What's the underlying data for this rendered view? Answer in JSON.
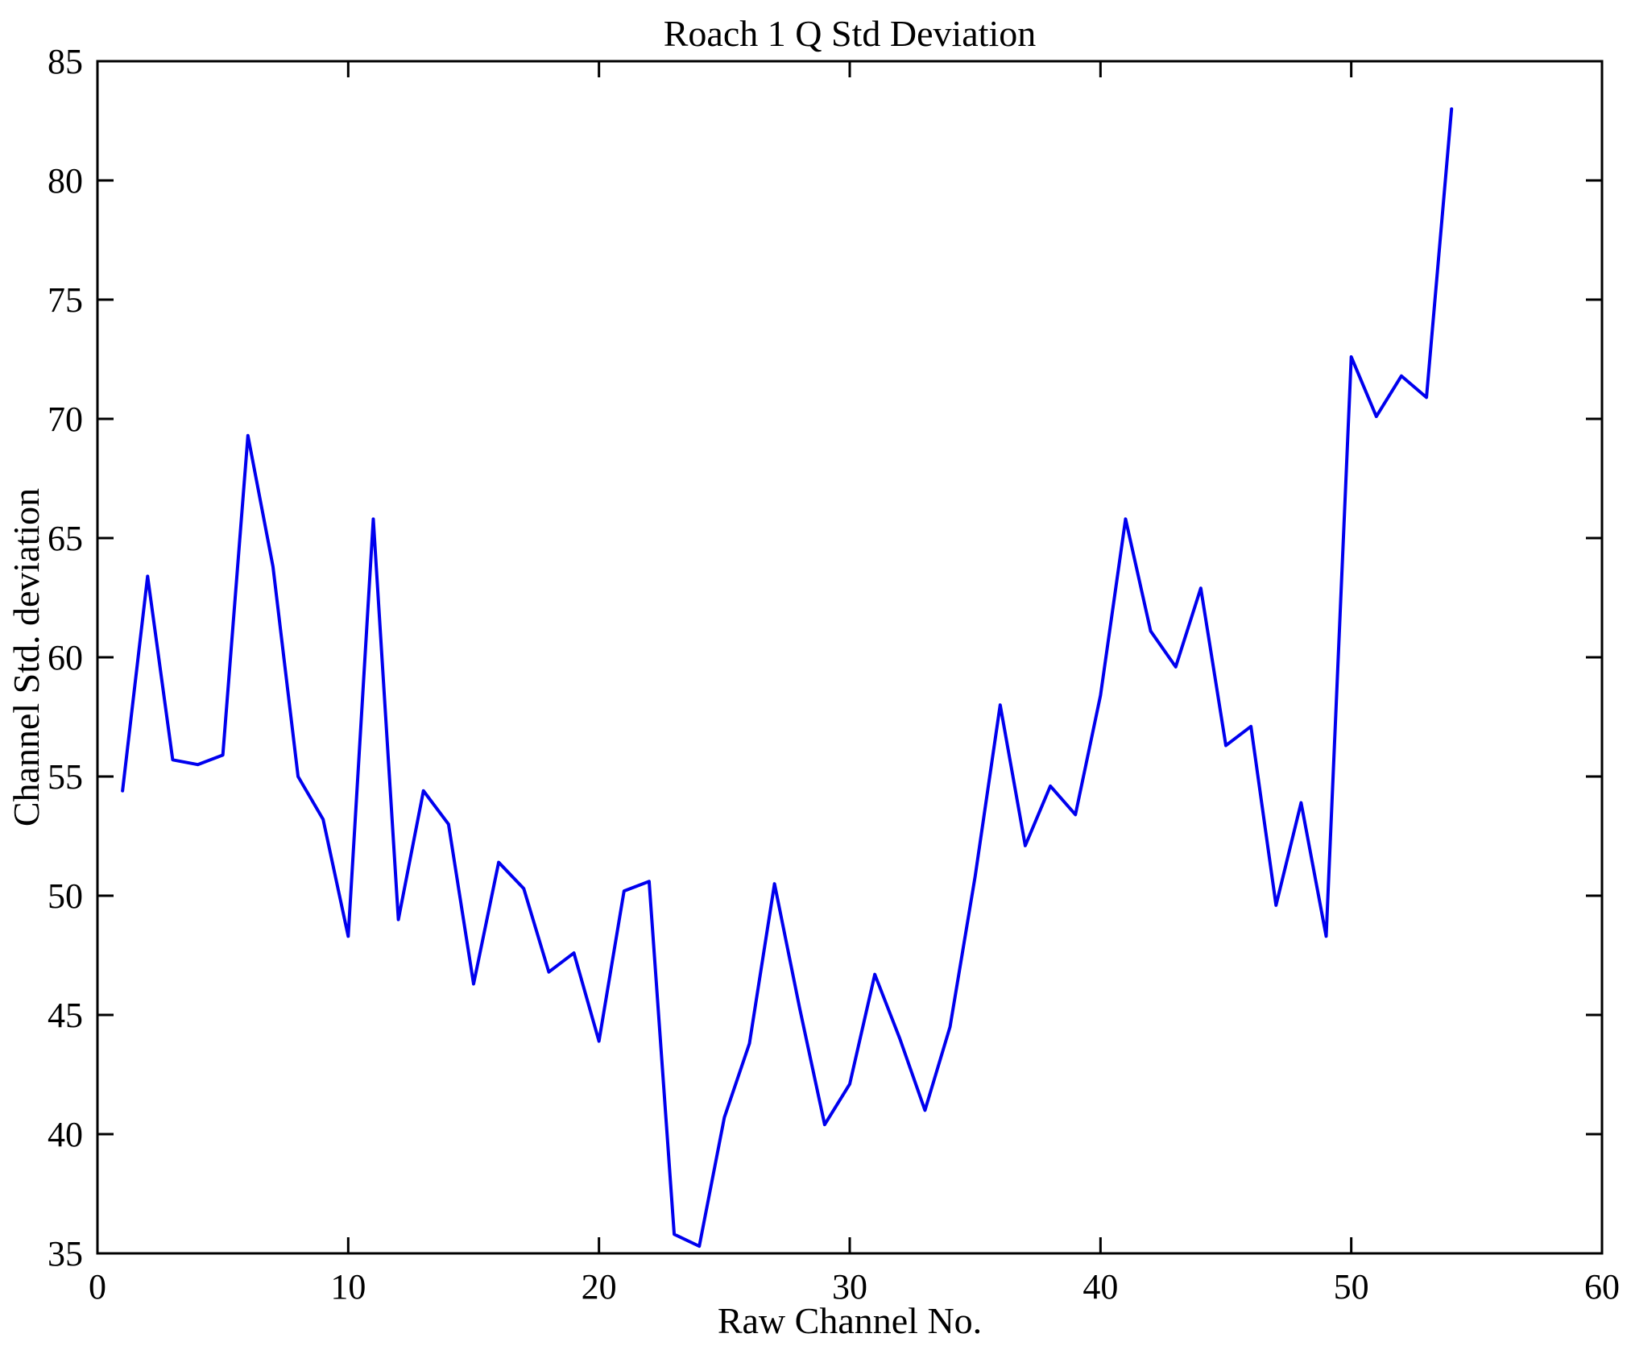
{
  "figure": {
    "background": "#ffffff"
  },
  "chart_data": {
    "type": "line",
    "title": "Roach 1 Q Std Deviation",
    "xlabel": "Raw Channel No.",
    "ylabel": "Channel Std. deviation",
    "x": [
      1,
      2,
      3,
      4,
      5,
      6,
      7,
      8,
      9,
      10,
      11,
      12,
      13,
      14,
      15,
      16,
      17,
      18,
      19,
      20,
      21,
      22,
      23,
      24,
      25,
      26,
      27,
      28,
      29,
      30,
      31,
      32,
      33,
      34,
      35,
      36,
      37,
      38,
      39,
      40,
      41,
      42,
      43,
      44,
      45,
      46,
      47,
      48,
      49,
      50,
      51,
      52,
      53,
      54
    ],
    "values": [
      54.4,
      63.4,
      55.7,
      55.5,
      55.9,
      69.3,
      63.8,
      55.0,
      53.2,
      48.3,
      65.8,
      49.0,
      54.4,
      53.0,
      46.3,
      51.4,
      50.3,
      46.8,
      47.6,
      43.9,
      50.2,
      50.6,
      35.8,
      35.3,
      40.7,
      43.8,
      50.5,
      45.3,
      40.4,
      42.1,
      46.7,
      44.0,
      41.0,
      44.5,
      50.8,
      58.0,
      52.1,
      54.6,
      53.4,
      58.4,
      65.8,
      61.1,
      59.6,
      62.9,
      56.3,
      57.1,
      49.6,
      53.9,
      48.3,
      72.6,
      70.1,
      71.8,
      70.9,
      83.0
    ],
    "xlim": [
      0,
      60
    ],
    "ylim": [
      35,
      85
    ],
    "xticks": [
      0,
      10,
      20,
      30,
      40,
      50,
      60
    ],
    "yticks": [
      35,
      40,
      45,
      50,
      55,
      60,
      65,
      70,
      75,
      80,
      85
    ],
    "grid": false,
    "box": true,
    "legend": "none",
    "line_color": "#0000ee",
    "axis_color": "#000000",
    "line_width": 4,
    "tick_length": 20
  }
}
